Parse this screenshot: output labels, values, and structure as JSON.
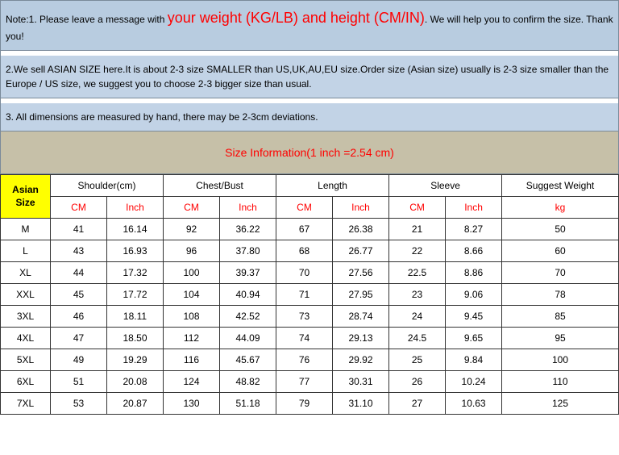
{
  "notes": {
    "n1_pre": "Note:1. Please leave a message with ",
    "n1_hl": "your weight (KG/LB) and height (CM/IN)",
    "n1_post": ". We will help you to confirm the size. Thank you!",
    "n2": "2.We sell ASIAN SIZE here.It is about 2-3 size SMALLER than US,UK,AU,EU size.Order size (Asian size) usually is 2-3 size smaller than the Europe / US size, we suggest you to choose 2-3 bigger size than usual.",
    "n3": "3. All dimensions are measured by hand, there may be 2-3cm deviations."
  },
  "title": "Size Information(1 inch =2.54 cm)",
  "headers": {
    "asian": "Asian Size",
    "groups": [
      "Shoulder(cm)",
      "Chest/Bust",
      "Length",
      "Sleeve",
      "Suggest Weight"
    ],
    "subs": [
      "CM",
      "Inch",
      "CM",
      "Inch",
      "CM",
      "Inch",
      "CM",
      "Inch",
      "kg"
    ]
  },
  "rows": [
    {
      "s": "M",
      "d": [
        "41",
        "16.14",
        "92",
        "36.22",
        "67",
        "26.38",
        "21",
        "8.27",
        "50"
      ]
    },
    {
      "s": "L",
      "d": [
        "43",
        "16.93",
        "96",
        "37.80",
        "68",
        "26.77",
        "22",
        "8.66",
        "60"
      ]
    },
    {
      "s": "XL",
      "d": [
        "44",
        "17.32",
        "100",
        "39.37",
        "70",
        "27.56",
        "22.5",
        "8.86",
        "70"
      ]
    },
    {
      "s": "XXL",
      "d": [
        "45",
        "17.72",
        "104",
        "40.94",
        "71",
        "27.95",
        "23",
        "9.06",
        "78"
      ]
    },
    {
      "s": "3XL",
      "d": [
        "46",
        "18.11",
        "108",
        "42.52",
        "73",
        "28.74",
        "24",
        "9.45",
        "85"
      ]
    },
    {
      "s": "4XL",
      "d": [
        "47",
        "18.50",
        "112",
        "44.09",
        "74",
        "29.13",
        "24.5",
        "9.65",
        "95"
      ]
    },
    {
      "s": "5XL",
      "d": [
        "49",
        "19.29",
        "116",
        "45.67",
        "76",
        "29.92",
        "25",
        "9.84",
        "100"
      ]
    },
    {
      "s": "6XL",
      "d": [
        "51",
        "20.08",
        "124",
        "48.82",
        "77",
        "30.31",
        "26",
        "10.24",
        "110"
      ]
    },
    {
      "s": "7XL",
      "d": [
        "53",
        "20.87",
        "130",
        "51.18",
        "79",
        "31.10",
        "27",
        "10.63",
        "125"
      ]
    }
  ]
}
